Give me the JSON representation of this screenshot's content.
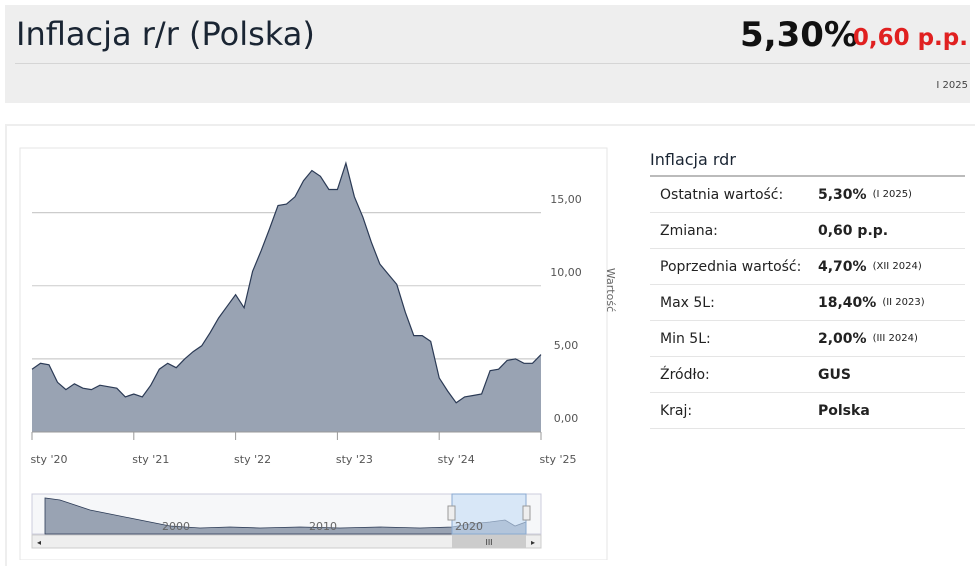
{
  "header": {
    "title": "Inflacja r/r (Polska)",
    "value": "5,30%",
    "change": "0,60 p.p.",
    "period": "I 2025"
  },
  "chart_data": {
    "type": "area",
    "color": "#99a3b3",
    "line_color": "#2b3a55",
    "categories": [
      "sty '20",
      null,
      null,
      null,
      null,
      null,
      null,
      null,
      null,
      null,
      null,
      null,
      "sty '21",
      null,
      null,
      null,
      null,
      null,
      null,
      null,
      null,
      null,
      null,
      null,
      "sty '22",
      null,
      null,
      null,
      null,
      null,
      null,
      null,
      null,
      null,
      null,
      null,
      "sty '23",
      null,
      null,
      null,
      null,
      null,
      null,
      null,
      null,
      null,
      null,
      null,
      "sty '24",
      null,
      null,
      null,
      null,
      null,
      null,
      null,
      null,
      null,
      null,
      null,
      "sty '25"
    ],
    "values": [
      4.3,
      4.7,
      4.6,
      3.4,
      2.9,
      3.3,
      3.0,
      2.9,
      3.2,
      3.1,
      3.0,
      2.4,
      2.6,
      2.4,
      3.2,
      4.3,
      4.7,
      4.4,
      5.0,
      5.5,
      5.9,
      6.8,
      7.8,
      8.6,
      9.4,
      8.5,
      11.0,
      12.4,
      13.9,
      15.5,
      15.6,
      16.1,
      17.2,
      17.9,
      17.5,
      16.6,
      16.6,
      18.4,
      16.1,
      14.7,
      13.0,
      11.5,
      10.8,
      10.1,
      8.2,
      6.6,
      6.6,
      6.2,
      3.7,
      2.8,
      2.0,
      2.4,
      2.5,
      2.6,
      4.2,
      4.3,
      4.9,
      5.0,
      4.7,
      4.7,
      5.3
    ],
    "ylim": [
      0,
      19.3
    ],
    "yticks": [
      {
        "value": 0,
        "label": "0,00"
      },
      {
        "value": 5,
        "label": "5,00"
      },
      {
        "value": 10,
        "label": "10,00"
      },
      {
        "value": 15,
        "label": "15,00"
      }
    ],
    "y_label": "Wartość",
    "grid": true,
    "navigator": {
      "labels": [
        "2000",
        "2010",
        "2020"
      ],
      "scroll": "III"
    }
  },
  "table": {
    "title": "Inflacja rdr",
    "rows": [
      {
        "label": "Ostatnia wartość:",
        "value": "5,30%",
        "note": "(I 2025)"
      },
      {
        "label": "Zmiana:",
        "value": "0,60 p.p."
      },
      {
        "label": "Poprzednia wartość:",
        "value": "4,70%",
        "note": "(XII 2024)"
      },
      {
        "label": "Max 5L:",
        "value": "18,40%",
        "note": "(II 2023)"
      },
      {
        "label": "Min 5L:",
        "value": "2,00%",
        "note": "(III 2024)"
      },
      {
        "label": "Źródło:",
        "value": "GUS"
      },
      {
        "label": "Kraj:",
        "value": "Polska"
      }
    ]
  }
}
